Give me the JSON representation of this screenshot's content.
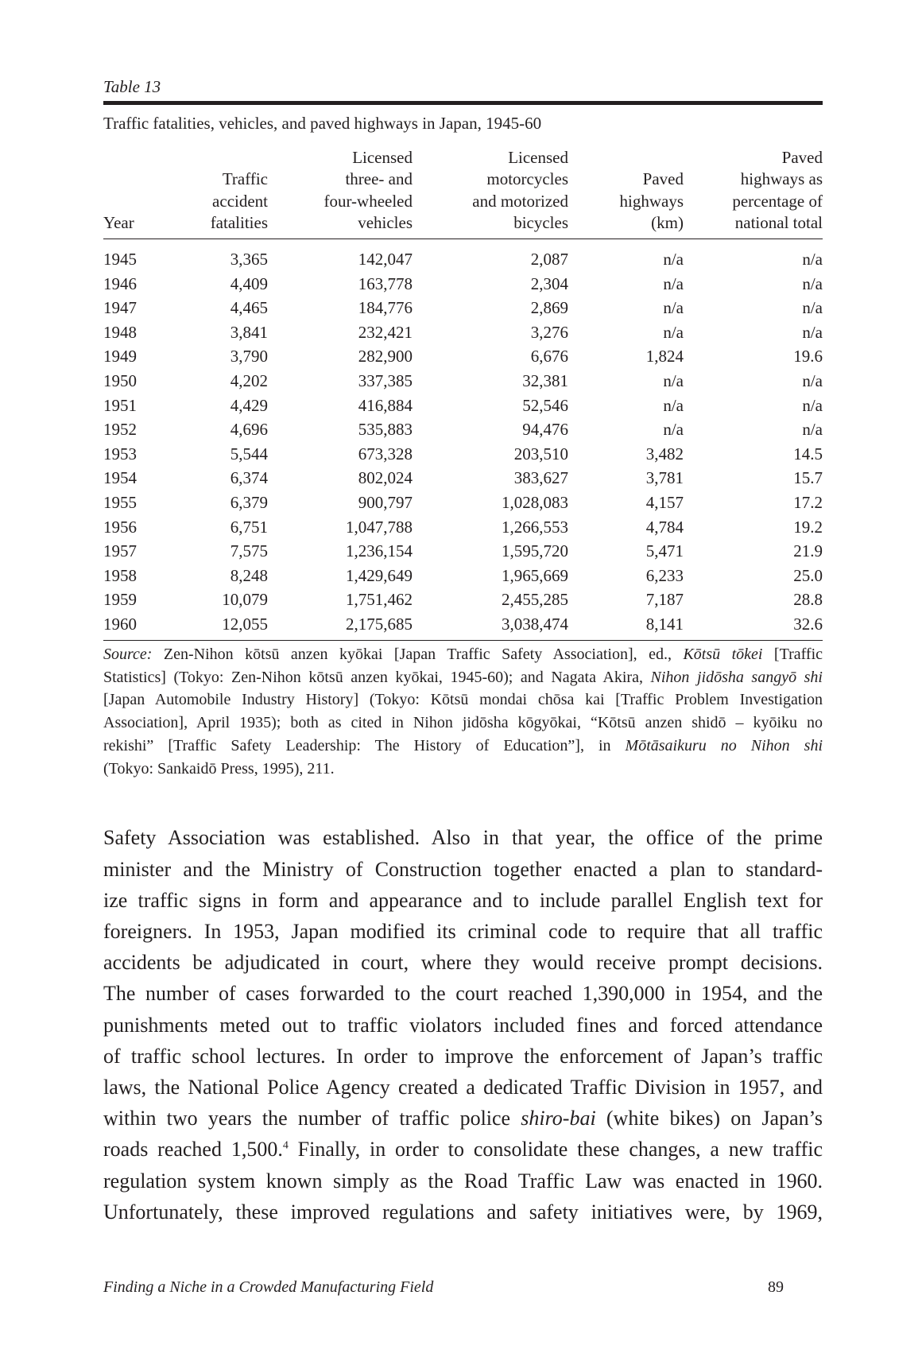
{
  "table_label": "Table 13",
  "table_title": "Traffic fatalities, vehicles, and paved highways in Japan, 1945-60",
  "table": {
    "headers": [
      [
        "Year"
      ],
      [
        "Traffic",
        "accident",
        "fatalities"
      ],
      [
        "Licensed",
        "three- and",
        "four-wheeled",
        "vehicles"
      ],
      [
        "Licensed",
        "motorcycles",
        "and motorized",
        "bicycles"
      ],
      [
        "Paved",
        "highways",
        "(km)"
      ],
      [
        "Paved",
        "highways as",
        "percentage of",
        "national total"
      ]
    ],
    "rows": [
      [
        "1945",
        "3,365",
        "142,047",
        "2,087",
        "n/a",
        "n/a"
      ],
      [
        "1946",
        "4,409",
        "163,778",
        "2,304",
        "n/a",
        "n/a"
      ],
      [
        "1947",
        "4,465",
        "184,776",
        "2,869",
        "n/a",
        "n/a"
      ],
      [
        "1948",
        "3,841",
        "232,421",
        "3,276",
        "n/a",
        "n/a"
      ],
      [
        "1949",
        "3,790",
        "282,900",
        "6,676",
        "1,824",
        "19.6"
      ],
      [
        "1950",
        "4,202",
        "337,385",
        "32,381",
        "n/a",
        "n/a"
      ],
      [
        "1951",
        "4,429",
        "416,884",
        "52,546",
        "n/a",
        "n/a"
      ],
      [
        "1952",
        "4,696",
        "535,883",
        "94,476",
        "n/a",
        "n/a"
      ],
      [
        "1953",
        "5,544",
        "673,328",
        "203,510",
        "3,482",
        "14.5"
      ],
      [
        "1954",
        "6,374",
        "802,024",
        "383,627",
        "3,781",
        "15.7"
      ],
      [
        "1955",
        "6,379",
        "900,797",
        "1,028,083",
        "4,157",
        "17.2"
      ],
      [
        "1956",
        "6,751",
        "1,047,788",
        "1,266,553",
        "4,784",
        "19.2"
      ],
      [
        "1957",
        "7,575",
        "1,236,154",
        "1,595,720",
        "5,471",
        "21.9"
      ],
      [
        "1958",
        "8,248",
        "1,429,649",
        "1,965,669",
        "6,233",
        "25.0"
      ],
      [
        "1959",
        "10,079",
        "1,751,462",
        "2,455,285",
        "7,187",
        "28.8"
      ],
      [
        "1960",
        "12,055",
        "2,175,685",
        "3,038,474",
        "8,141",
        "32.6"
      ]
    ]
  },
  "source": {
    "lines": [
      [
        "Source:",
        " Zen-Nihon kōtsū anzen kyōkai [Japan Traffic Safety Association], ed., ",
        "Kōtsū tōkei",
        " [Traffic"
      ],
      [
        "Statistics] (Tokyo: Zen-Nihon kōtsū anzen kyōkai, 1945-60); and Nagata Akira, ",
        "Nihon jidōsha sangyō shi"
      ],
      [
        "[Japan Automobile Industry History] (Tokyo: Kōtsū mondai chōsa kai [Traffic Problem Investigation"
      ],
      [
        "Association], April 1935); both as cited in Nihon jidōsha kōgyōkai, “Kōtsū anzen shidō – kyōiku no"
      ],
      [
        "rekishi” [Traffic Safety Leadership: The History of Education”], in ",
        "Mōtāsaikuru no Nihon shi"
      ],
      [
        "(Tokyo: Sankaidō Press, 1995), 211."
      ]
    ]
  },
  "body": {
    "lines": [
      [
        "Safety Association was established. Also in that year, the office of the prime"
      ],
      [
        "minister and the Ministry of Construction together enacted a plan to standard-"
      ],
      [
        "ize traffic signs in form and appearance and to include parallel English text for"
      ],
      [
        "foreigners. In 1953, Japan modified its criminal code to require that all traffic"
      ],
      [
        "accidents be adjudicated in court, where they would receive prompt decisions."
      ],
      [
        "The number of cases forwarded to the court reached 1,390,000 in 1954, and the"
      ],
      [
        "punishments meted out to traffic violators included fines and forced attendance"
      ],
      [
        "of traffic school lectures. In order to improve the enforcement of Japan’s traffic"
      ],
      [
        "laws, the National Police Agency created a dedicated Traffic Division in 1957, and"
      ],
      [
        "within two years the number of traffic police ",
        "shiro-bai",
        " (white bikes) on Japan’s"
      ],
      [
        "roads reached 1,500.",
        "4",
        " Finally, in order to consolidate these changes, a new traffic"
      ],
      [
        "regulation system known simply as the Road Traffic Law was enacted in 1960."
      ],
      [
        "Unfortunately, these improved regulations and safety initiatives were, by 1969,"
      ]
    ]
  },
  "footer": {
    "running_title": "Finding a Niche in a Crowded Manufacturing Field",
    "page_number": "89"
  }
}
